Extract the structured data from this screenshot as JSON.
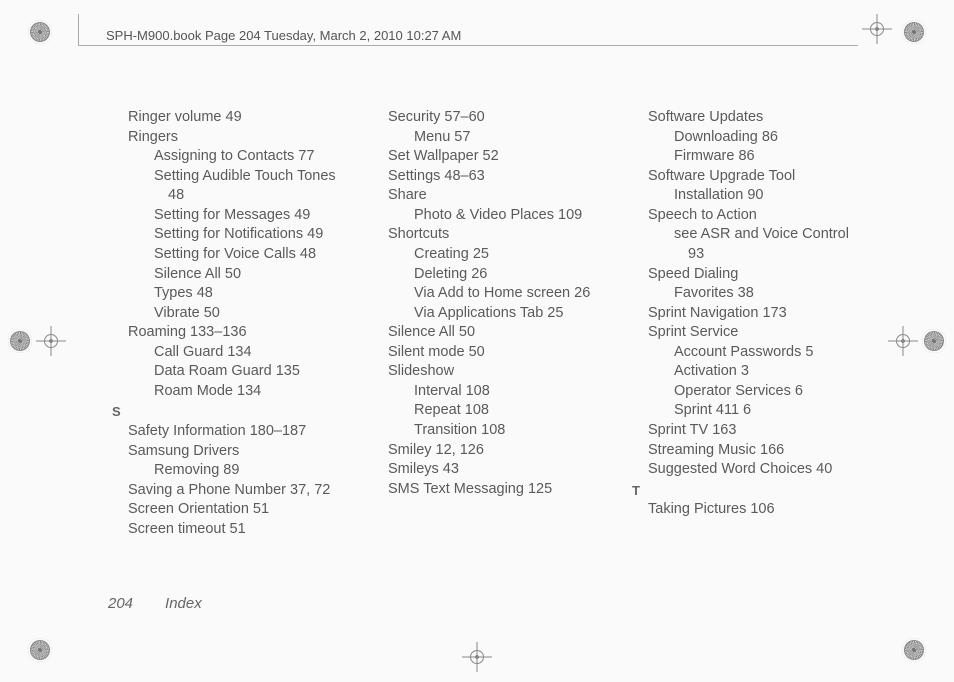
{
  "header": "SPH-M900.book  Page 204  Tuesday, March 2, 2010  10:27 AM",
  "footer": {
    "page": "204",
    "section": "Index"
  },
  "letters": {
    "S": "S",
    "T": "T"
  },
  "col1": [
    {
      "t": "entry",
      "v": "Ringer volume 49"
    },
    {
      "t": "entry",
      "v": "Ringers"
    },
    {
      "t": "sub",
      "v": "Assigning to Contacts 77"
    },
    {
      "t": "sub",
      "v": "Setting Audible Touch Tones"
    },
    {
      "t": "sub2",
      "v": "48"
    },
    {
      "t": "sub",
      "v": "Setting for Messages 49"
    },
    {
      "t": "sub",
      "v": "Setting for Notifications 49"
    },
    {
      "t": "sub",
      "v": "Setting for Voice Calls 48"
    },
    {
      "t": "sub",
      "v": "Silence All 50"
    },
    {
      "t": "sub",
      "v": "Types 48"
    },
    {
      "t": "sub",
      "v": "Vibrate 50"
    },
    {
      "t": "entry",
      "v": "Roaming 133–136"
    },
    {
      "t": "sub",
      "v": "Call Guard 134"
    },
    {
      "t": "sub",
      "v": "Data Roam Guard 135"
    },
    {
      "t": "sub",
      "v": "Roam Mode 134"
    },
    {
      "t": "letter",
      "k": "S"
    },
    {
      "t": "entry",
      "v": "Safety Information 180–187"
    },
    {
      "t": "entry",
      "v": "Samsung Drivers"
    },
    {
      "t": "sub",
      "v": "Removing 89"
    },
    {
      "t": "entry",
      "v": "Saving a Phone Number 37, 72"
    },
    {
      "t": "entry",
      "v": "Screen Orientation 51"
    },
    {
      "t": "entry",
      "v": "Screen timeout 51"
    }
  ],
  "col2": [
    {
      "t": "entry",
      "v": "Security 57–60"
    },
    {
      "t": "sub",
      "v": "Menu 57"
    },
    {
      "t": "entry",
      "v": "Set Wallpaper 52"
    },
    {
      "t": "entry",
      "v": "Settings 48–63"
    },
    {
      "t": "entry",
      "v": "Share"
    },
    {
      "t": "sub",
      "v": "Photo & Video Places 109"
    },
    {
      "t": "entry",
      "v": "Shortcuts"
    },
    {
      "t": "sub",
      "v": "Creating 25"
    },
    {
      "t": "sub",
      "v": "Deleting 26"
    },
    {
      "t": "sub",
      "v": "Via Add to Home screen 26"
    },
    {
      "t": "sub",
      "v": "Via Applications Tab 25"
    },
    {
      "t": "entry",
      "v": "Silence All 50"
    },
    {
      "t": "entry",
      "v": "Silent mode 50"
    },
    {
      "t": "entry",
      "v": "Slideshow"
    },
    {
      "t": "sub",
      "v": "Interval 108"
    },
    {
      "t": "sub",
      "v": "Repeat 108"
    },
    {
      "t": "sub",
      "v": "Transition 108"
    },
    {
      "t": "entry",
      "v": "Smiley 12, 126"
    },
    {
      "t": "entry",
      "v": "Smileys 43"
    },
    {
      "t": "entry",
      "v": "SMS Text Messaging 125"
    }
  ],
  "col3": [
    {
      "t": "entry",
      "v": "Software Updates"
    },
    {
      "t": "sub",
      "v": "Downloading 86"
    },
    {
      "t": "sub",
      "v": "Firmware 86"
    },
    {
      "t": "entry",
      "v": "Software Upgrade Tool"
    },
    {
      "t": "sub",
      "v": "Installation 90"
    },
    {
      "t": "entry",
      "v": "Speech to Action"
    },
    {
      "t": "sub",
      "v": "see ASR and Voice Control"
    },
    {
      "t": "sub2",
      "v": "93"
    },
    {
      "t": "entry",
      "v": "Speed Dialing"
    },
    {
      "t": "sub",
      "v": "Favorites 38"
    },
    {
      "t": "entry",
      "v": "Sprint Navigation 173"
    },
    {
      "t": "entry",
      "v": "Sprint Service"
    },
    {
      "t": "sub",
      "v": "Account Passwords 5"
    },
    {
      "t": "sub",
      "v": "Activation 3"
    },
    {
      "t": "sub",
      "v": "Operator Services 6"
    },
    {
      "t": "sub",
      "v": "Sprint 411 6"
    },
    {
      "t": "entry",
      "v": "Sprint TV 163"
    },
    {
      "t": "entry",
      "v": "Streaming Music 166"
    },
    {
      "t": "entry",
      "v": "Suggested Word Choices 40"
    },
    {
      "t": "letter",
      "k": "T"
    },
    {
      "t": "entry",
      "v": "Taking Pictures 106"
    }
  ]
}
